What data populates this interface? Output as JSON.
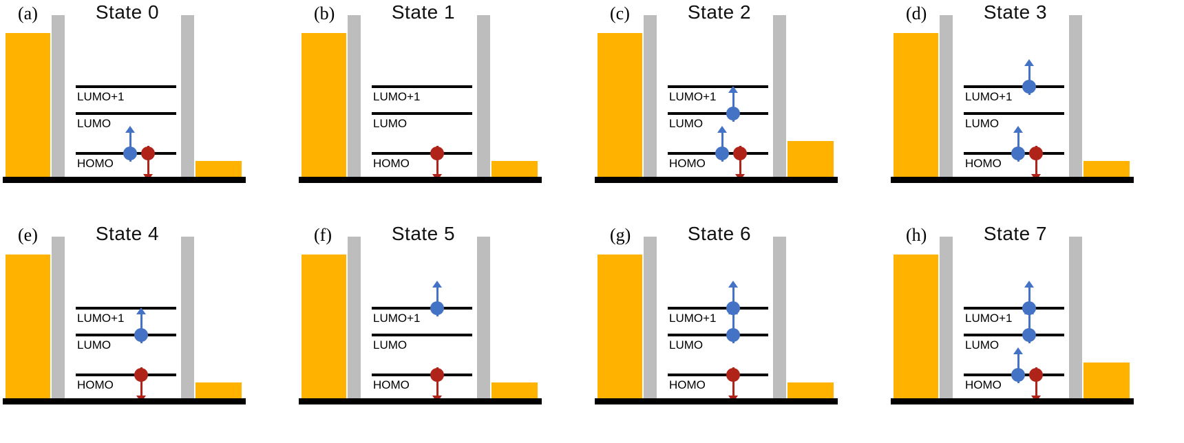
{
  "figure": {
    "colors": {
      "electrode": "#FFB300",
      "barrier": "#BDBDBD",
      "level_line": "#000000",
      "baseline": "#000000",
      "spin_up": "#4472C4",
      "spin_down": "#B02318"
    },
    "level_names": [
      "LUMO+1",
      "LUMO",
      "HOMO"
    ],
    "panels": [
      {
        "label": "(a)",
        "title": "State 0",
        "right_electrode": "short",
        "occupancy": {
          "LUMO+1": [],
          "LUMO": [],
          "HOMO": [
            "up",
            "down"
          ]
        }
      },
      {
        "label": "(b)",
        "title": "State 1",
        "right_electrode": "short",
        "occupancy": {
          "LUMO+1": [],
          "LUMO": [],
          "HOMO": [
            "down"
          ]
        }
      },
      {
        "label": "(c)",
        "title": "State 2",
        "right_electrode": "tall",
        "occupancy": {
          "LUMO+1": [],
          "LUMO": [
            "up"
          ],
          "HOMO": [
            "up",
            "down"
          ]
        }
      },
      {
        "label": "(d)",
        "title": "State 3",
        "right_electrode": "short",
        "occupancy": {
          "LUMO+1": [
            "up"
          ],
          "LUMO": [],
          "HOMO": [
            "up",
            "down"
          ]
        }
      },
      {
        "label": "(e)",
        "title": "State 4",
        "right_electrode": "short",
        "occupancy": {
          "LUMO+1": [],
          "LUMO": [
            "up"
          ],
          "HOMO": [
            "down"
          ]
        }
      },
      {
        "label": "(f)",
        "title": "State 5",
        "right_electrode": "short",
        "occupancy": {
          "LUMO+1": [
            "up"
          ],
          "LUMO": [],
          "HOMO": [
            "down"
          ]
        }
      },
      {
        "label": "(g)",
        "title": "State 6",
        "right_electrode": "short",
        "occupancy": {
          "LUMO+1": [
            "up"
          ],
          "LUMO": [
            "up"
          ],
          "HOMO": [
            "down"
          ]
        }
      },
      {
        "label": "(h)",
        "title": "State 7",
        "right_electrode": "tall",
        "occupancy": {
          "LUMO+1": [
            "up"
          ],
          "LUMO": [
            "up"
          ],
          "HOMO": [
            "up",
            "down"
          ]
        }
      }
    ]
  }
}
